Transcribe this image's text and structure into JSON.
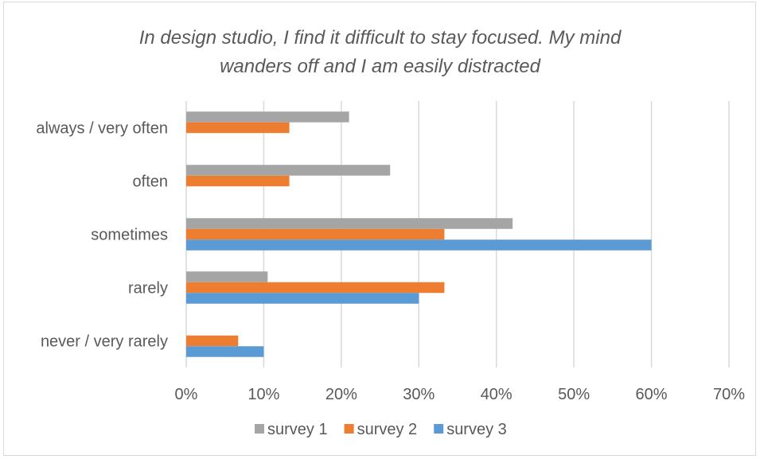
{
  "chart_data": {
    "type": "bar",
    "orientation": "horizontal",
    "title": "In design studio, I find it difficult to stay focused. My mind wanders off and I am easily distracted",
    "title_lines": [
      "In design studio, I find it difficult to stay focused. My mind",
      "wanders off and I am easily distracted"
    ],
    "categories": [
      "always / very often",
      "often",
      "sometimes",
      "rarely",
      "never / very rarely"
    ],
    "series": [
      {
        "name": "survey 1",
        "color": "#a5a5a5",
        "values": [
          21,
          26.3,
          42.1,
          10.5,
          0
        ]
      },
      {
        "name": "survey 2",
        "color": "#ed7d31",
        "values": [
          13.3,
          13.3,
          33.3,
          33.3,
          6.7
        ]
      },
      {
        "name": "survey 3",
        "color": "#5b9bd5",
        "values": [
          0,
          0,
          60,
          30,
          10
        ]
      }
    ],
    "x_ticks": [
      "0%",
      "10%",
      "20%",
      "30%",
      "40%",
      "50%",
      "60%",
      "70%"
    ],
    "xlim": [
      0,
      70
    ],
    "grid": true,
    "legend_position": "bottom"
  }
}
